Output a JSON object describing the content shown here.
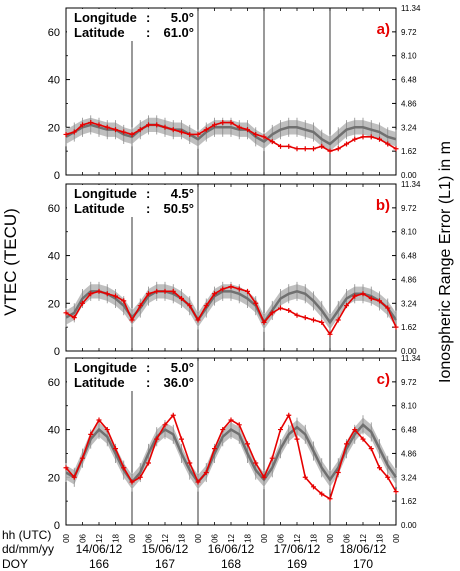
{
  "chart_data": {
    "type": "line",
    "ylabel_left": "VTEC (TECU)",
    "ylabel_right": "Ionospheric Range Error (L1) in m",
    "ylim": [
      0,
      70
    ],
    "left_ticks": [
      "0",
      "20",
      "40",
      "60"
    ],
    "left_tick_values": [
      0,
      20,
      40,
      60
    ],
    "right_ticks": [
      "0.00",
      "1.62",
      "3.24",
      "4.86",
      "6.48",
      "8.10",
      "9.72",
      "11.34"
    ],
    "right_tick_values": [
      0,
      10,
      20,
      30,
      40,
      50,
      60,
      70
    ],
    "x_range_days": 5,
    "x_tick_hours": [
      "00",
      "06",
      "12",
      "18",
      "00",
      "06",
      "12",
      "18",
      "00",
      "06",
      "12",
      "18",
      "00",
      "06",
      "12",
      "18",
      "00",
      "06",
      "12",
      "18",
      "00"
    ],
    "row_labels": {
      "hh": "hh (UTC)",
      "dd": "dd/mm/yy",
      "doy": "DOY"
    },
    "dates": [
      "14/06/12",
      "15/06/12",
      "16/06/12",
      "17/06/12",
      "18/06/12"
    ],
    "doy": [
      "166",
      "167",
      "168",
      "169",
      "170"
    ],
    "colors": {
      "observed": "#e60000",
      "model": "#707070",
      "band": "#b8b8b8",
      "label": "#e60000"
    },
    "panels": [
      {
        "tag": "a)",
        "lon_label": "Longitude",
        "lon_value": "5.0°",
        "lat_label": "Latitude",
        "lat_value": "61.0°",
        "series": [
          {
            "role": "observed",
            "x": [
              0.0,
              0.125,
              0.25,
              0.375,
              0.5,
              0.625,
              0.75,
              0.875,
              1.0,
              1.125,
              1.25,
              1.375,
              1.5,
              1.625,
              1.75,
              1.875,
              2.0,
              2.125,
              2.25,
              2.375,
              2.5,
              2.625,
              2.75,
              2.875,
              3.0,
              3.125,
              3.25,
              3.375,
              3.5,
              3.625,
              3.75,
              3.875,
              4.0,
              4.125,
              4.25,
              4.375,
              4.5,
              4.625,
              4.75,
              4.875,
              5.0
            ],
            "y": [
              17,
              18,
              21,
              22,
              21,
              20,
              19,
              18,
              17,
              19,
              21,
              21,
              20,
              19,
              18,
              17,
              17,
              19,
              21,
              22,
              22,
              20,
              19,
              17,
              16,
              14,
              12,
              12,
              11,
              11,
              11,
              12,
              10,
              11,
              13,
              15,
              16,
              16,
              15,
              13,
              11
            ]
          },
          {
            "role": "model",
            "x": [
              0.0,
              0.125,
              0.25,
              0.375,
              0.5,
              0.625,
              0.75,
              0.875,
              1.0,
              1.125,
              1.25,
              1.375,
              1.5,
              1.625,
              1.75,
              1.875,
              2.0,
              2.125,
              2.25,
              2.375,
              2.5,
              2.625,
              2.75,
              2.875,
              3.0,
              3.125,
              3.25,
              3.375,
              3.5,
              3.625,
              3.75,
              3.875,
              4.0,
              4.125,
              4.25,
              4.375,
              4.5,
              4.625,
              4.75,
              4.875,
              5.0
            ],
            "y": [
              16,
              18,
              20,
              21,
              20,
              19,
              19,
              17,
              16,
              19,
              21,
              21,
              20,
              19,
              19,
              17,
              15,
              18,
              20,
              20,
              20,
              19,
              19,
              16,
              14,
              17,
              19,
              20,
              20,
              19,
              18,
              15,
              13,
              16,
              19,
              20,
              20,
              19,
              18,
              16,
              15
            ]
          }
        ]
      },
      {
        "tag": "b)",
        "lon_label": "Longitude",
        "lon_value": "4.5°",
        "lat_label": "Latitude",
        "lat_value": "50.5°",
        "series": [
          {
            "role": "observed",
            "x": [
              0.0,
              0.125,
              0.25,
              0.375,
              0.5,
              0.625,
              0.75,
              0.875,
              1.0,
              1.125,
              1.25,
              1.375,
              1.5,
              1.625,
              1.75,
              1.875,
              2.0,
              2.125,
              2.25,
              2.375,
              2.5,
              2.625,
              2.75,
              2.875,
              3.0,
              3.125,
              3.25,
              3.375,
              3.5,
              3.625,
              3.75,
              3.875,
              4.0,
              4.125,
              4.25,
              4.375,
              4.5,
              4.625,
              4.75,
              4.875,
              5.0
            ],
            "y": [
              16,
              14,
              20,
              24,
              25,
              24,
              23,
              21,
              13,
              19,
              24,
              25,
              25,
              25,
              22,
              19,
              13,
              19,
              24,
              26,
              27,
              26,
              25,
              20,
              12,
              16,
              18,
              17,
              15,
              14,
              13,
              12,
              7,
              13,
              19,
              23,
              24,
              22,
              21,
              18,
              10
            ]
          },
          {
            "role": "model",
            "x": [
              0.0,
              0.125,
              0.25,
              0.375,
              0.5,
              0.625,
              0.75,
              0.875,
              1.0,
              1.125,
              1.25,
              1.375,
              1.5,
              1.625,
              1.75,
              1.875,
              2.0,
              2.125,
              2.25,
              2.375,
              2.5,
              2.625,
              2.75,
              2.875,
              3.0,
              3.125,
              3.25,
              3.375,
              3.5,
              3.625,
              3.75,
              3.875,
              4.0,
              4.125,
              4.25,
              4.375,
              4.5,
              4.625,
              4.75,
              4.875,
              5.0
            ],
            "y": [
              14,
              16,
              22,
              25,
              25,
              24,
              22,
              19,
              14,
              18,
              23,
              25,
              25,
              24,
              22,
              19,
              13,
              18,
              23,
              25,
              25,
              24,
              22,
              19,
              12,
              17,
              22,
              24,
              25,
              24,
              21,
              17,
              12,
              17,
              22,
              24,
              24,
              23,
              21,
              18,
              13
            ]
          }
        ]
      },
      {
        "tag": "c)",
        "lon_label": "Longitude",
        "lon_value": "5.0°",
        "lat_label": "Latitude",
        "lat_value": "36.0°",
        "series": [
          {
            "role": "observed",
            "x": [
              0.0,
              0.125,
              0.25,
              0.375,
              0.5,
              0.625,
              0.75,
              0.875,
              1.0,
              1.125,
              1.25,
              1.375,
              1.5,
              1.625,
              1.75,
              1.875,
              2.0,
              2.125,
              2.25,
              2.375,
              2.5,
              2.625,
              2.75,
              2.875,
              3.0,
              3.125,
              3.25,
              3.375,
              3.5,
              3.625,
              3.75,
              3.875,
              4.0,
              4.125,
              4.25,
              4.375,
              4.5,
              4.625,
              4.75,
              4.875,
              5.0
            ],
            "y": [
              24,
              20,
              28,
              38,
              44,
              40,
              32,
              24,
              18,
              20,
              26,
              36,
              42,
              46,
              36,
              26,
              18,
              22,
              32,
              40,
              44,
              42,
              34,
              26,
              20,
              28,
              40,
              46,
              36,
              20,
              16,
              13,
              11,
              22,
              34,
              40,
              36,
              32,
              24,
              20,
              14
            ]
          },
          {
            "role": "model",
            "x": [
              0.0,
              0.125,
              0.25,
              0.375,
              0.5,
              0.625,
              0.75,
              0.875,
              1.0,
              1.125,
              1.25,
              1.375,
              1.5,
              1.625,
              1.75,
              1.875,
              2.0,
              2.125,
              2.25,
              2.375,
              2.5,
              2.625,
              2.75,
              2.875,
              3.0,
              3.125,
              3.25,
              3.375,
              3.5,
              3.625,
              3.75,
              3.875,
              4.0,
              4.125,
              4.25,
              4.375,
              4.5,
              4.625,
              4.75,
              4.875,
              5.0
            ],
            "y": [
              22,
              20,
              28,
              36,
              40,
              37,
              30,
              23,
              18,
              22,
              30,
              37,
              40,
              38,
              30,
              23,
              18,
              22,
              30,
              37,
              40,
              38,
              30,
              23,
              19,
              24,
              32,
              38,
              41,
              38,
              31,
              24,
              19,
              24,
              32,
              38,
              42,
              39,
              32,
              25,
              20
            ]
          }
        ]
      }
    ]
  }
}
